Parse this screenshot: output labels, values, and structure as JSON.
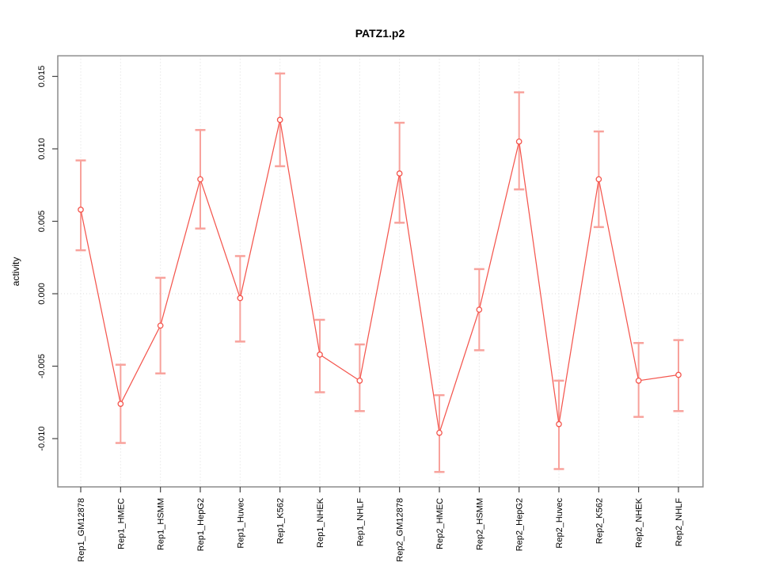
{
  "figure": {
    "title": "PATZ1.p2",
    "background": "#ffffff"
  },
  "chart_data": {
    "type": "line",
    "title": "PATZ1.p2",
    "xlabel": "",
    "ylabel": "activity",
    "legend": false,
    "marker": "open-circle",
    "error_bars": true,
    "categories": [
      "Rep1_GM12878",
      "Rep1_HMEC",
      "Rep1_HSMM",
      "Rep1_HepG2",
      "Rep1_Huvec",
      "Rep1_K562",
      "Rep1_NHEK",
      "Rep1_NHLF",
      "Rep2_GM12878",
      "Rep2_HMEC",
      "Rep2_HSMM",
      "Rep2_HepG2",
      "Rep2_Huvec",
      "Rep2_K562",
      "Rep2_NHEK",
      "Rep2_NHLF"
    ],
    "series": [
      {
        "name": "activity",
        "values": [
          0.0058,
          -0.0076,
          -0.0022,
          0.0079,
          -0.0003,
          0.012,
          -0.0042,
          -0.006,
          0.0083,
          -0.0096,
          -0.0011,
          0.0105,
          -0.009,
          0.0079,
          -0.006,
          -0.0056
        ],
        "upper": [
          0.0092,
          -0.0049,
          0.0011,
          0.0113,
          0.0026,
          0.0152,
          -0.0018,
          -0.0035,
          0.0118,
          -0.007,
          0.0017,
          0.0139,
          -0.006,
          0.0112,
          -0.0034,
          -0.0032
        ],
        "lower": [
          0.003,
          -0.0103,
          -0.0055,
          0.0045,
          -0.0033,
          0.0088,
          -0.0068,
          -0.0081,
          0.0049,
          -0.0123,
          -0.0039,
          0.0072,
          -0.0121,
          0.0046,
          -0.0085,
          -0.0081
        ]
      }
    ],
    "ylim": [
      -0.01333,
      0.01642
    ],
    "yticks": [
      0.015,
      0.01,
      0.005,
      0,
      -0.005,
      -0.01
    ],
    "ytick_labels": [
      "0.015",
      "0.010",
      "0.005",
      "0.000",
      "-0.005",
      "-0.010"
    ],
    "grid": {
      "vertical_dotted_per_category": true,
      "horizontal_dotted_zero_line": true,
      "horizontal_gridlines": false
    },
    "colors": {
      "series": "#f4564e",
      "error_bar": "#f8a29c",
      "grid": "#dcdcdc",
      "box": "#8c8c8c",
      "tick": "#444444",
      "text": "#000000"
    }
  }
}
